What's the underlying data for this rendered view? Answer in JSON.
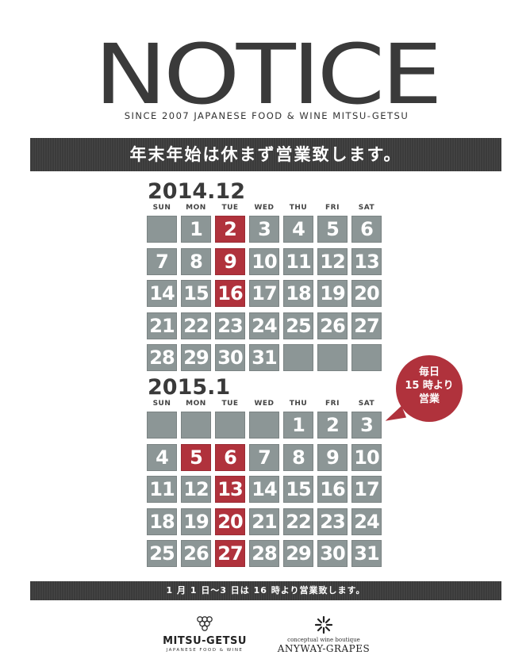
{
  "header": {
    "title": "NOTICE",
    "subtitle": "SINCE 2007 JAPANESE FOOD & WINE MITSU-GETSU"
  },
  "banner_top": "年末年始は休まず営業致します。",
  "weekdays": [
    "SUN",
    "MON",
    "TUE",
    "WED",
    "THU",
    "FRI",
    "SAT"
  ],
  "calendars": [
    {
      "title": "2014.12",
      "weeks": [
        [
          null,
          1,
          2,
          3,
          4,
          5,
          6
        ],
        [
          7,
          8,
          9,
          10,
          11,
          12,
          13
        ],
        [
          14,
          15,
          16,
          17,
          18,
          19,
          20
        ],
        [
          21,
          22,
          23,
          24,
          25,
          26,
          27
        ],
        [
          28,
          29,
          30,
          31,
          null,
          null,
          null
        ]
      ],
      "highlighted": [
        2,
        9,
        16
      ]
    },
    {
      "title": "2015.1",
      "weeks": [
        [
          null,
          null,
          null,
          null,
          1,
          2,
          3
        ],
        [
          4,
          5,
          6,
          7,
          8,
          9,
          10
        ],
        [
          11,
          12,
          13,
          14,
          15,
          16,
          17
        ],
        [
          18,
          19,
          20,
          21,
          22,
          23,
          24
        ],
        [
          25,
          26,
          27,
          28,
          29,
          30,
          31
        ]
      ],
      "highlighted": [
        5,
        6,
        13,
        20,
        27
      ]
    }
  ],
  "bubble": {
    "lines": [
      "毎日",
      "15 時より",
      "営業"
    ]
  },
  "banner_bottom": "1 月 1 日〜3 日は 16 時より営業致します。",
  "logos": {
    "mitsu": {
      "icon": "grape-cluster-icon",
      "name": "MITSU-GETSU",
      "tagline": "JAPANESE FOOD & WINE"
    },
    "anyway": {
      "icon": "starburst-icon",
      "tagline": "conceptual wine boutique",
      "name": "ANYWAY-GRAPES"
    }
  },
  "colors": {
    "cell": "#8c9696",
    "highlight": "#b0323c",
    "banner": "#3b3b3b",
    "text": "#3a3a3a"
  }
}
